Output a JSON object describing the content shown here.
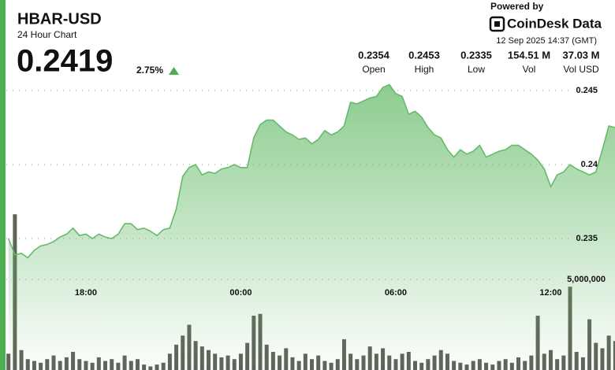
{
  "header": {
    "symbol": "HBAR-USD",
    "subtitle": "24 Hour Chart",
    "price": "0.2419",
    "change": "2.75%",
    "powered_by": "Powered by",
    "brand": "CoinDesk Data",
    "timestamp": "12 Sep 2025 14:37 (GMT)"
  },
  "stats": [
    {
      "value": "0.2354",
      "label": "Open"
    },
    {
      "value": "0.2453",
      "label": "High"
    },
    {
      "value": "0.2335",
      "label": "Low"
    },
    {
      "value": "154.51 M",
      "label": "Vol"
    },
    {
      "value": "37.03 M",
      "label": "Vol USD"
    }
  ],
  "chart_data": {
    "type": "area",
    "color": "#66bb6a",
    "grid": true,
    "categories": [
      null,
      null,
      null,
      null,
      null,
      null,
      null,
      null,
      null,
      null,
      null,
      null,
      "18:00",
      null,
      null,
      null,
      null,
      null,
      null,
      null,
      null,
      null,
      null,
      null,
      null,
      null,
      null,
      null,
      null,
      null,
      null,
      null,
      null,
      null,
      null,
      null,
      "00:00",
      null,
      null,
      null,
      null,
      null,
      null,
      null,
      null,
      null,
      null,
      null,
      null,
      null,
      null,
      null,
      null,
      null,
      null,
      null,
      null,
      null,
      null,
      null,
      "06:00",
      null,
      null,
      null,
      null,
      null,
      null,
      null,
      null,
      null,
      null,
      null,
      null,
      null,
      null,
      null,
      null,
      null,
      null,
      null,
      null,
      null,
      null,
      null,
      "12:00",
      null,
      null,
      null,
      null,
      null,
      null,
      null,
      null,
      null,
      null
    ],
    "values": [
      0.235,
      0.2339,
      0.234,
      0.2337,
      0.2342,
      0.2345,
      0.2346,
      0.2348,
      0.2351,
      0.2353,
      0.2357,
      0.2352,
      0.2353,
      0.235,
      0.2353,
      0.2351,
      0.235,
      0.2353,
      0.236,
      0.236,
      0.2356,
      0.2357,
      0.2355,
      0.2352,
      0.2356,
      0.2357,
      0.237,
      0.2392,
      0.2398,
      0.24,
      0.2393,
      0.2395,
      0.2394,
      0.2397,
      0.2398,
      0.24,
      0.2398,
      0.2398,
      0.2418,
      0.2427,
      0.243,
      0.243,
      0.2426,
      0.2422,
      0.242,
      0.2417,
      0.2418,
      0.2414,
      0.2417,
      0.2423,
      0.242,
      0.2422,
      0.2426,
      0.2442,
      0.2441,
      0.2443,
      0.2445,
      0.2446,
      0.2452,
      0.2454,
      0.2448,
      0.2446,
      0.2434,
      0.2436,
      0.2432,
      0.2425,
      0.242,
      0.2418,
      0.241,
      0.2405,
      0.241,
      0.2407,
      0.2409,
      0.2413,
      0.2405,
      0.2407,
      0.2409,
      0.241,
      0.2413,
      0.2413,
      0.241,
      0.2407,
      0.2403,
      0.2397,
      0.2385,
      0.2393,
      0.2395,
      0.24,
      0.2397,
      0.2395,
      0.2393,
      0.2395,
      0.241,
      0.2426,
      0.2425
    ],
    "ylim": [
      0.232,
      0.2465
    ],
    "yticks": [
      0.245,
      0.24,
      0.235
    ],
    "volume": {
      "color": "#5f6259",
      "ylim": [
        0,
        10000000
      ],
      "yticks": [
        {
          "value": 5000000,
          "label": "5,000,000"
        }
      ],
      "values": [
        900000,
        8600000,
        1100000,
        600000,
        500000,
        400000,
        600000,
        800000,
        500000,
        700000,
        1000000,
        600000,
        500000,
        400000,
        700000,
        500000,
        600000,
        400000,
        800000,
        500000,
        600000,
        300000,
        200000,
        300000,
        400000,
        900000,
        1400000,
        1900000,
        2500000,
        1600000,
        1300000,
        1100000,
        900000,
        700000,
        800000,
        600000,
        900000,
        1500000,
        3000000,
        3100000,
        1400000,
        1000000,
        800000,
        1200000,
        700000,
        500000,
        900000,
        600000,
        800000,
        500000,
        400000,
        600000,
        1700000,
        900000,
        600000,
        800000,
        1300000,
        900000,
        1200000,
        800000,
        600000,
        900000,
        1000000,
        500000,
        400000,
        600000,
        800000,
        1100000,
        900000,
        500000,
        400000,
        300000,
        500000,
        600000,
        400000,
        300000,
        500000,
        600000,
        400000,
        700000,
        500000,
        800000,
        3000000,
        900000,
        1100000,
        600000,
        800000,
        4600000,
        1000000,
        700000,
        2800000,
        1500000,
        1200000,
        1900000,
        1600000
      ]
    }
  }
}
